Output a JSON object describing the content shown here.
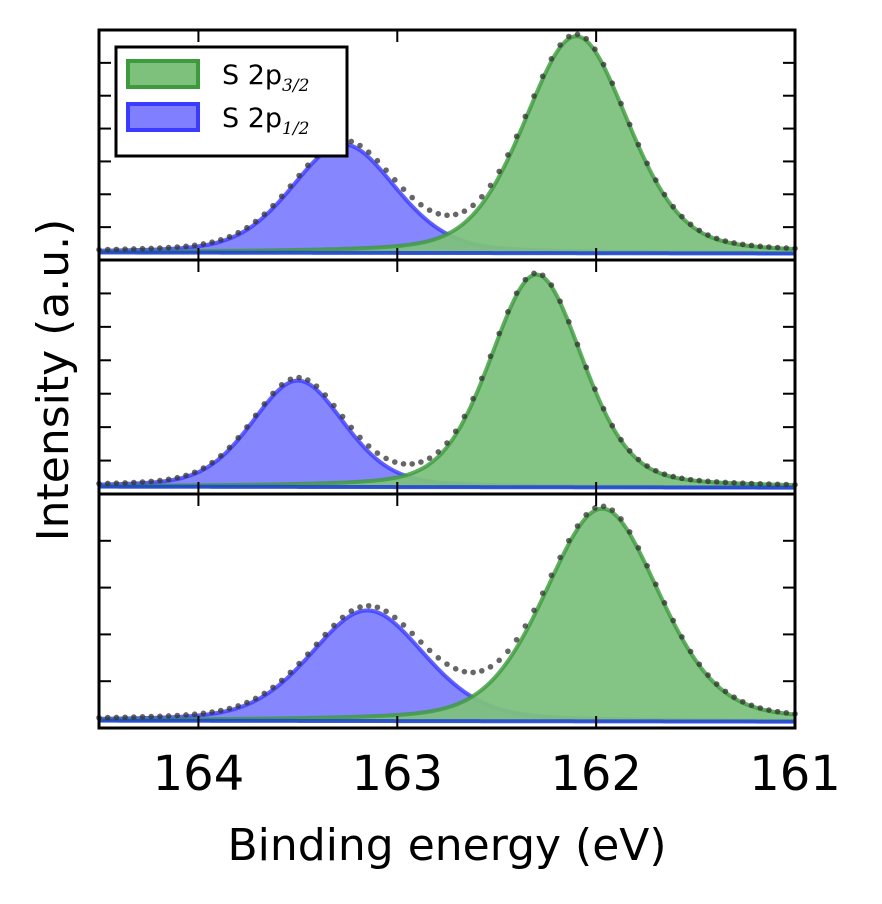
{
  "chart_data": {
    "type": "area",
    "xlabel": "Binding energy (eV)",
    "ylabel": "Intensity (a.u.)",
    "xlim": [
      164.5,
      161.0
    ],
    "x_ticks": [
      "164",
      "163",
      "162",
      "161"
    ],
    "legend": {
      "placement": "top-left",
      "entries": [
        {
          "base": "S 2p",
          "sub": "3/2",
          "color": "#2ca02c"
        },
        {
          "base": "S 2p",
          "sub": "1/2",
          "color": "#0000ff"
        }
      ]
    },
    "colors": {
      "green_fill": "#7dc17d",
      "green_edge": "#3d9a3d",
      "blue_fill": "#7f7fff",
      "blue_edge": "#3b3bff",
      "data_points": "#333333"
    },
    "panels": [
      {
        "ylim": [
          0,
          1.06
        ],
        "background": 0.03,
        "series": [
          {
            "name": "S 2p3/2",
            "center": 162.1,
            "fwhm": 0.62,
            "height": 1.0
          },
          {
            "name": "S 2p1/2",
            "center": 163.27,
            "fwhm": 0.62,
            "height": 0.5
          }
        ]
      },
      {
        "ylim": [
          0,
          1.1
        ],
        "background": 0.03,
        "series": [
          {
            "name": "S 2p3/2",
            "center": 162.3,
            "fwhm": 0.55,
            "height": 1.0
          },
          {
            "name": "S 2p1/2",
            "center": 163.5,
            "fwhm": 0.55,
            "height": 0.5
          }
        ]
      },
      {
        "ylim": [
          0,
          1.1
        ],
        "background": 0.03,
        "series": [
          {
            "name": "S 2p3/2",
            "center": 161.97,
            "fwhm": 0.68,
            "height": 1.0
          },
          {
            "name": "S 2p1/2",
            "center": 163.15,
            "fwhm": 0.68,
            "height": 0.52
          }
        ]
      }
    ]
  }
}
